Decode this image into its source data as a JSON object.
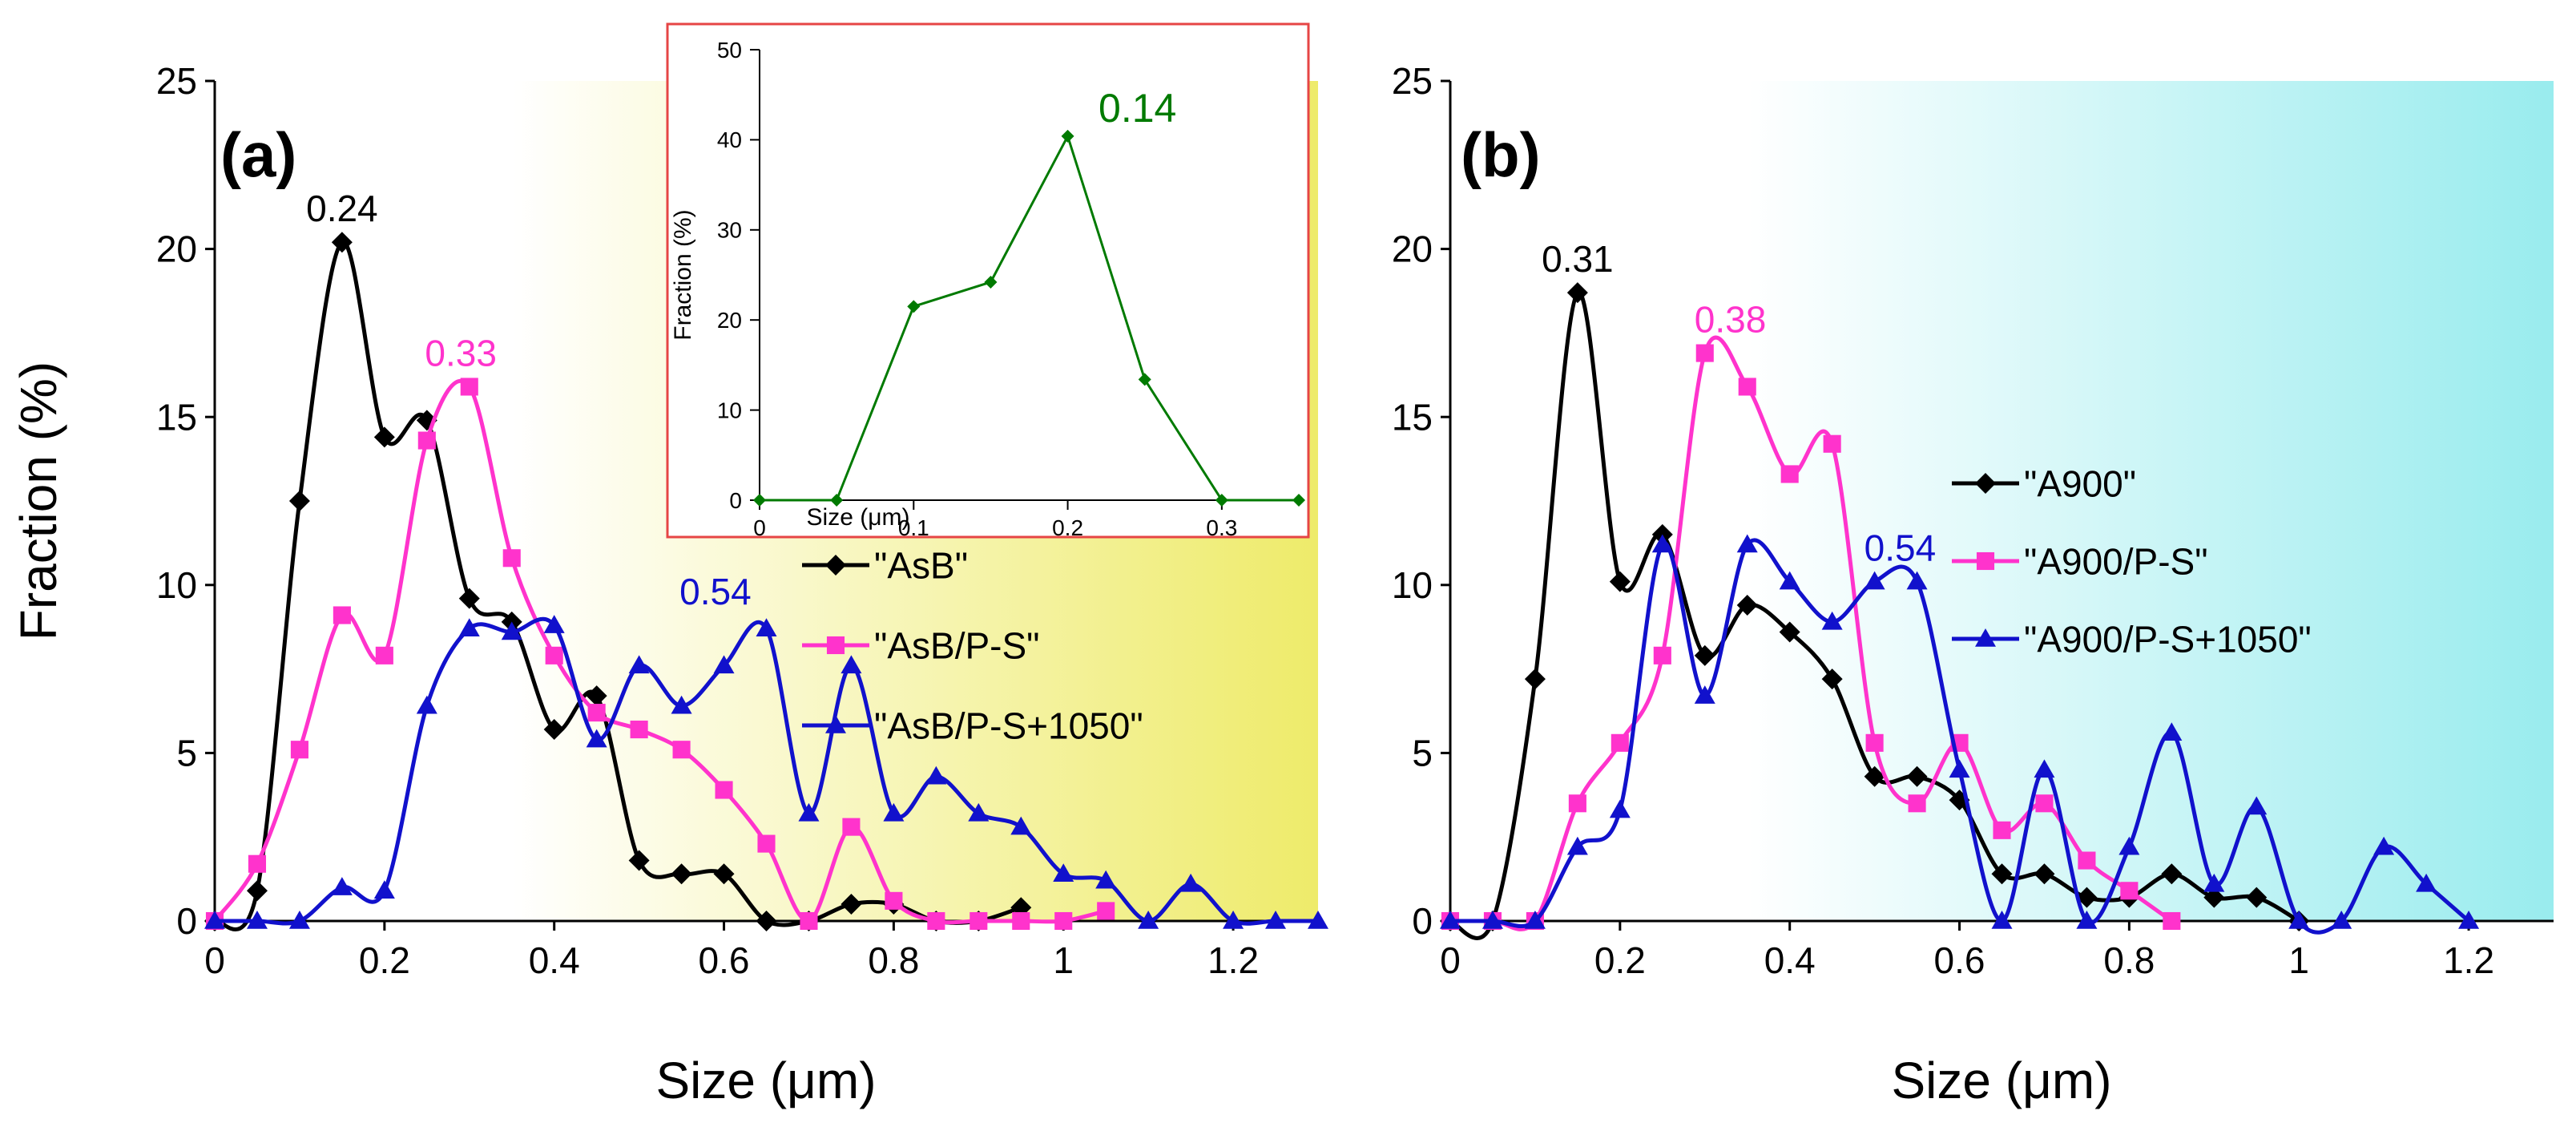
{
  "colors": {
    "black": "#000000",
    "magenta": "#ff33cc",
    "blue": "#1111cc",
    "green": "#007a00",
    "yellow_gradient_end": "#eeeb6a",
    "cyan_gradient_end": "#99ecee",
    "inset_border": "#e64545"
  },
  "chart_data": [
    {
      "panel": "(a)",
      "type": "line",
      "ylabel": "Fraction (%)",
      "xlabel": "Size (μm)",
      "xlim": [
        0,
        1.3
      ],
      "ylim": [
        0,
        25
      ],
      "x_ticks": [
        "0",
        "0.2",
        "0.4",
        "0.6",
        "0.8",
        "1",
        "1.2"
      ],
      "y_ticks": [
        "0",
        "5",
        "10",
        "15",
        "20",
        "25"
      ],
      "legend_position": "right-middle",
      "series": [
        {
          "name": "\"AsB\"",
          "color": "#000000",
          "marker": "diamond",
          "x": [
            0,
            0.05,
            0.1,
            0.15,
            0.2,
            0.25,
            0.3,
            0.35,
            0.4,
            0.45,
            0.5,
            0.55,
            0.6,
            0.65,
            0.7,
            0.75,
            0.8,
            0.85,
            0.9,
            0.95
          ],
          "y": [
            0,
            0.9,
            12.5,
            20.2,
            14.4,
            14.9,
            9.6,
            8.9,
            5.7,
            6.7,
            1.8,
            1.4,
            1.4,
            0,
            0,
            0.5,
            0.5,
            0,
            0,
            0.4
          ]
        },
        {
          "name": "\"AsB/P-S\"",
          "color": "#ff33cc",
          "marker": "square",
          "x": [
            0,
            0.05,
            0.1,
            0.15,
            0.2,
            0.25,
            0.3,
            0.35,
            0.4,
            0.45,
            0.5,
            0.55,
            0.6,
            0.65,
            0.7,
            0.75,
            0.8,
            0.85,
            0.9,
            0.95,
            1.0,
            1.05
          ],
          "y": [
            0,
            1.7,
            5.1,
            9.1,
            7.9,
            14.3,
            15.9,
            10.8,
            7.9,
            6.2,
            5.7,
            5.1,
            3.9,
            2.3,
            0,
            2.8,
            0.6,
            0,
            0,
            0,
            0,
            0.3
          ]
        },
        {
          "name": "\"AsB/P-S+1050\"",
          "color": "#1111cc",
          "marker": "triangle",
          "x": [
            0,
            0.05,
            0.1,
            0.15,
            0.2,
            0.25,
            0.3,
            0.35,
            0.4,
            0.45,
            0.5,
            0.55,
            0.6,
            0.65,
            0.7,
            0.75,
            0.8,
            0.85,
            0.9,
            0.95,
            1.0,
            1.05,
            1.1,
            1.15,
            1.2,
            1.25,
            1.3
          ],
          "y": [
            0,
            0,
            0,
            1.0,
            0.9,
            6.4,
            8.7,
            8.6,
            8.8,
            5.4,
            7.6,
            6.4,
            7.6,
            8.7,
            3.2,
            7.6,
            3.2,
            4.3,
            3.2,
            2.8,
            1.4,
            1.2,
            0,
            1.1,
            0,
            0,
            0
          ]
        }
      ],
      "peak_labels": [
        {
          "text": "0.24",
          "x": 0.15,
          "y": 20.2,
          "color": "#000000"
        },
        {
          "text": "0.33",
          "x": 0.29,
          "y": 15.9,
          "color": "#ff33cc"
        },
        {
          "text": "0.54",
          "x": 0.59,
          "y": 8.8,
          "color": "#1111cc"
        }
      ]
    },
    {
      "panel": "(b)",
      "type": "line",
      "ylabel": "",
      "xlabel": "Size (μm)",
      "xlim": [
        0,
        1.3
      ],
      "ylim": [
        0,
        25
      ],
      "x_ticks": [
        "0",
        "0.2",
        "0.4",
        "0.6",
        "0.8",
        "1",
        "1.2"
      ],
      "y_ticks": [
        "0",
        "5",
        "10",
        "15",
        "20",
        "25"
      ],
      "legend_position": "right-middle",
      "series": [
        {
          "name": "\"A900\"",
          "color": "#000000",
          "marker": "diamond",
          "x": [
            0,
            0.05,
            0.1,
            0.15,
            0.2,
            0.25,
            0.3,
            0.35,
            0.4,
            0.45,
            0.5,
            0.55,
            0.6,
            0.65,
            0.7,
            0.75,
            0.8,
            0.85,
            0.9,
            0.95,
            1.0
          ],
          "y": [
            0,
            0,
            7.2,
            18.7,
            10.1,
            11.5,
            7.9,
            9.4,
            8.6,
            7.2,
            4.3,
            4.3,
            3.6,
            1.4,
            1.4,
            0.7,
            0.7,
            1.4,
            0.7,
            0.7,
            0
          ]
        },
        {
          "name": "\"A900/P-S\"",
          "color": "#ff33cc",
          "marker": "square",
          "x": [
            0,
            0.05,
            0.1,
            0.15,
            0.2,
            0.25,
            0.3,
            0.35,
            0.4,
            0.45,
            0.5,
            0.55,
            0.6,
            0.65,
            0.7,
            0.75,
            0.8,
            0.85
          ],
          "y": [
            0,
            0,
            0,
            3.5,
            5.3,
            7.9,
            16.9,
            15.9,
            13.3,
            14.2,
            5.3,
            3.5,
            5.3,
            2.7,
            3.5,
            1.8,
            0.9,
            0
          ]
        },
        {
          "name": "\"A900/P-S+1050\"",
          "color": "#1111cc",
          "marker": "triangle",
          "x": [
            0,
            0.05,
            0.1,
            0.15,
            0.2,
            0.25,
            0.3,
            0.35,
            0.4,
            0.45,
            0.5,
            0.55,
            0.6,
            0.65,
            0.7,
            0.75,
            0.8,
            0.85,
            0.9,
            0.95,
            1.0,
            1.05,
            1.1,
            1.15,
            1.2
          ],
          "y": [
            0,
            0,
            0,
            2.2,
            3.3,
            11.2,
            6.7,
            11.2,
            10.1,
            8.9,
            10.1,
            10.1,
            4.5,
            0,
            4.5,
            0,
            2.2,
            5.6,
            1.1,
            3.4,
            0,
            0,
            2.2,
            1.1,
            0
          ]
        }
      ],
      "peak_labels": [
        {
          "text": "0.31",
          "x": 0.15,
          "y": 18.7,
          "color": "#000000"
        },
        {
          "text": "0.38",
          "x": 0.33,
          "y": 16.9,
          "color": "#ff33cc"
        },
        {
          "text": "0.54",
          "x": 0.53,
          "y": 10.1,
          "color": "#1111cc"
        }
      ]
    },
    {
      "panel": "inset",
      "type": "line",
      "ylabel": "Fraction (%)",
      "xlabel": "Size (μm)",
      "xlim": [
        0,
        0.35
      ],
      "ylim": [
        0,
        50
      ],
      "x_ticks": [
        "0",
        "0.1",
        "0.2",
        "0.3"
      ],
      "y_ticks": [
        "0",
        "10",
        "20",
        "30",
        "40",
        "50"
      ],
      "series": [
        {
          "name": "inset",
          "color": "#007a00",
          "marker": "diamond",
          "x": [
            0,
            0.05,
            0.1,
            0.15,
            0.2,
            0.25,
            0.3,
            0.35
          ],
          "y": [
            0,
            0,
            21.5,
            24.2,
            40.4,
            13.4,
            0,
            0
          ]
        }
      ],
      "peak_labels": [
        {
          "text": "0.14",
          "x": 0.22,
          "y": 40.4,
          "color": "#007a00"
        }
      ]
    }
  ]
}
